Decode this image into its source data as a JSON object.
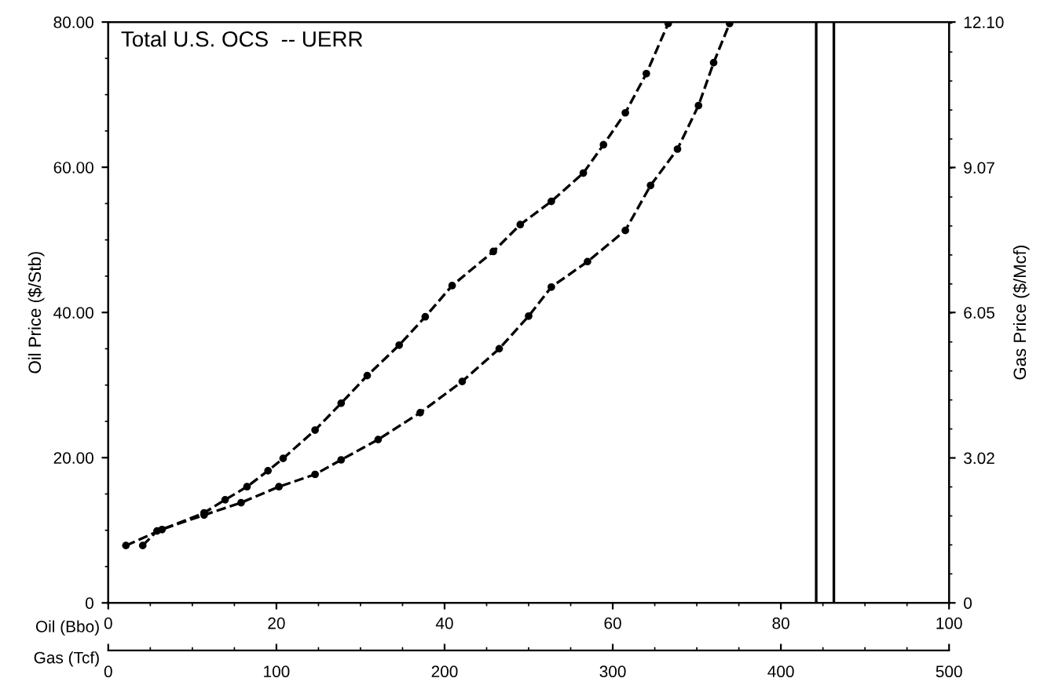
{
  "chart_data": {
    "type": "line",
    "title": "Total U.S. OCS  -- UERR",
    "xlabel": "Oil (Bbo)",
    "x2label": "Gas (Tcf)",
    "ylabel": "Oil Price ($/Stb)",
    "y2label": "Gas Price ($/Mcf)",
    "xlim": [
      0,
      100
    ],
    "xticks": [
      0,
      20,
      40,
      60,
      80,
      100
    ],
    "x2lim": [
      0,
      500
    ],
    "x2ticks": [
      0,
      100,
      200,
      300,
      400,
      500
    ],
    "ylim": [
      0,
      80
    ],
    "yticks": [
      0,
      {
        "value": 20,
        "label": "20.00"
      },
      {
        "value": 40,
        "label": "40.00"
      },
      {
        "value": 60,
        "label": "60.00"
      },
      {
        "value": 80,
        "label": "80.00"
      }
    ],
    "y2lim": [
      0,
      12.1
    ],
    "y2ticks": [
      0,
      3.02,
      6.05,
      9.07,
      {
        "value": 12.1,
        "label": "12.10"
      }
    ],
    "marker": "circle",
    "line_style": "dashed",
    "grid": false,
    "series": [
      {
        "color": "#000000",
        "x": [
          2.1,
          6.4,
          11.4,
          13.9,
          16.5,
          19,
          20.8,
          24.6,
          27.7,
          30.8,
          34.6,
          37.7,
          40.9,
          45.8,
          49,
          52.7,
          56.5,
          58.9,
          61.5,
          64,
          66.6
        ],
        "values": [
          7.9,
          10.1,
          12.4,
          14.2,
          16,
          18.2,
          19.9,
          23.8,
          27.5,
          31.3,
          35.5,
          39.4,
          43.7,
          48.4,
          52.1,
          55.3,
          59.2,
          63.1,
          67.5,
          72.9,
          79.8
        ]
      },
      {
        "color": "#000000",
        "x": [
          4.1,
          5.8,
          11.4,
          15.8,
          20.3,
          24.6,
          27.7,
          32.1,
          37.1,
          42.1,
          46.5,
          50,
          52.7,
          57,
          61.5,
          64.5,
          67.7,
          70.2,
          72,
          73.9
        ],
        "values": [
          7.9,
          9.9,
          12.1,
          13.8,
          16,
          17.7,
          19.7,
          22.5,
          26.2,
          30.5,
          35,
          39.5,
          43.5,
          47,
          51.3,
          57.5,
          62.5,
          68.5,
          74.4,
          79.8
        ]
      }
    ],
    "ref_lines": [
      {
        "axis": "x",
        "value": 84.2,
        "color": "#000000"
      },
      {
        "axis": "x",
        "value": 86.3,
        "color": "#000000"
      }
    ]
  }
}
